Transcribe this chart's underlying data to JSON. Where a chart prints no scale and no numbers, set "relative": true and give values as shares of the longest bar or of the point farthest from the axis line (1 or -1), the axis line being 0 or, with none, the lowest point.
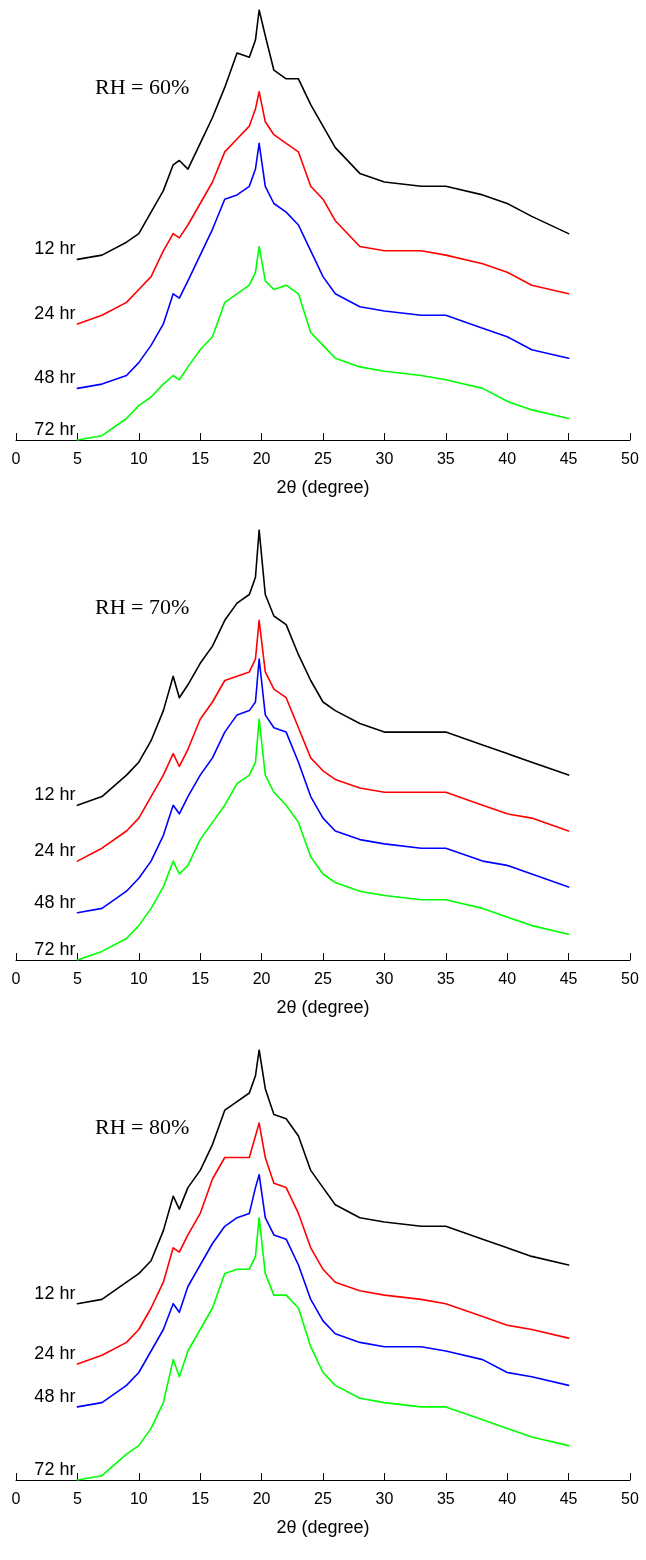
{
  "chart_data": [
    {
      "type": "line",
      "relative": true,
      "xlabel": "2θ (degree)",
      "annotations": [
        "RH = 60%"
      ],
      "xlim": [
        0,
        50
      ],
      "xticks": [
        0,
        5,
        10,
        15,
        20,
        25,
        30,
        35,
        40,
        45,
        50
      ],
      "marker": "none",
      "line_style": "solid",
      "x": [
        5,
        7,
        9,
        10,
        11,
        12,
        12.8,
        13.3,
        14,
        15,
        16,
        17,
        18,
        19,
        19.5,
        19.8,
        20.3,
        21,
        22,
        23,
        24,
        25,
        26,
        28,
        30,
        33,
        35,
        38,
        40,
        42,
        45
      ],
      "series": [
        {
          "name": "12 hr",
          "color": "#000000",
          "values": [
            0.42,
            0.43,
            0.46,
            0.48,
            0.53,
            0.58,
            0.64,
            0.65,
            0.63,
            0.69,
            0.75,
            0.82,
            0.9,
            0.89,
            0.93,
            1.0,
            0.94,
            0.86,
            0.84,
            0.84,
            0.78,
            0.73,
            0.68,
            0.62,
            0.6,
            0.59,
            0.59,
            0.57,
            0.55,
            0.52,
            0.48
          ]
        },
        {
          "name": "24 hr",
          "color": "#ff0000",
          "values": [
            0.27,
            0.29,
            0.32,
            0.35,
            0.38,
            0.44,
            0.48,
            0.47,
            0.5,
            0.55,
            0.6,
            0.67,
            0.7,
            0.73,
            0.77,
            0.81,
            0.74,
            0.71,
            0.69,
            0.67,
            0.59,
            0.56,
            0.51,
            0.45,
            0.44,
            0.44,
            0.43,
            0.41,
            0.39,
            0.36,
            0.34
          ]
        },
        {
          "name": "48 hr",
          "color": "#0000ff",
          "values": [
            0.12,
            0.13,
            0.15,
            0.18,
            0.22,
            0.27,
            0.34,
            0.33,
            0.37,
            0.43,
            0.49,
            0.56,
            0.57,
            0.59,
            0.63,
            0.69,
            0.59,
            0.55,
            0.53,
            0.5,
            0.44,
            0.38,
            0.34,
            0.31,
            0.3,
            0.29,
            0.29,
            0.26,
            0.24,
            0.21,
            0.19
          ]
        },
        {
          "name": "72 hr",
          "color": "#00ff00",
          "values": [
            0,
            0.01,
            0.05,
            0.08,
            0.1,
            0.13,
            0.15,
            0.14,
            0.17,
            0.21,
            0.24,
            0.32,
            0.34,
            0.36,
            0.39,
            0.45,
            0.37,
            0.35,
            0.36,
            0.34,
            0.25,
            0.22,
            0.19,
            0.17,
            0.16,
            0.15,
            0.14,
            0.12,
            0.09,
            0.07,
            0.05
          ]
        }
      ]
    },
    {
      "type": "line",
      "relative": true,
      "xlabel": "2θ (degree)",
      "annotations": [
        "RH = 70%"
      ],
      "xlim": [
        0,
        50
      ],
      "xticks": [
        0,
        5,
        10,
        15,
        20,
        25,
        30,
        35,
        40,
        45,
        50
      ],
      "marker": "none",
      "line_style": "solid",
      "x": [
        5,
        7,
        9,
        10,
        11,
        12,
        12.8,
        13.3,
        14,
        15,
        16,
        17,
        18,
        19,
        19.5,
        19.8,
        20.3,
        21,
        22,
        23,
        24,
        25,
        26,
        28,
        30,
        33,
        35,
        38,
        40,
        42,
        45
      ],
      "series": [
        {
          "name": "12 hr",
          "color": "#000000",
          "values": [
            0.36,
            0.38,
            0.43,
            0.46,
            0.51,
            0.58,
            0.66,
            0.61,
            0.64,
            0.69,
            0.73,
            0.79,
            0.83,
            0.85,
            0.89,
            1.0,
            0.85,
            0.8,
            0.78,
            0.71,
            0.65,
            0.6,
            0.58,
            0.55,
            0.53,
            0.53,
            0.53,
            0.5,
            0.48,
            0.46,
            0.43
          ]
        },
        {
          "name": "24 hr",
          "color": "#ff0000",
          "values": [
            0.23,
            0.26,
            0.3,
            0.33,
            0.38,
            0.43,
            0.48,
            0.45,
            0.49,
            0.56,
            0.6,
            0.65,
            0.66,
            0.67,
            0.7,
            0.79,
            0.67,
            0.63,
            0.61,
            0.54,
            0.47,
            0.44,
            0.42,
            0.4,
            0.39,
            0.39,
            0.39,
            0.36,
            0.34,
            0.33,
            0.3
          ]
        },
        {
          "name": "48 hr",
          "color": "#0000ff",
          "values": [
            0.11,
            0.12,
            0.16,
            0.19,
            0.23,
            0.29,
            0.36,
            0.34,
            0.38,
            0.43,
            0.47,
            0.53,
            0.57,
            0.58,
            0.6,
            0.7,
            0.57,
            0.54,
            0.53,
            0.46,
            0.38,
            0.33,
            0.3,
            0.28,
            0.27,
            0.26,
            0.26,
            0.23,
            0.22,
            0.2,
            0.17
          ]
        },
        {
          "name": "72 hr",
          "color": "#00ff00",
          "values": [
            0,
            0.02,
            0.05,
            0.08,
            0.12,
            0.17,
            0.23,
            0.2,
            0.22,
            0.28,
            0.32,
            0.36,
            0.41,
            0.43,
            0.46,
            0.56,
            0.43,
            0.39,
            0.36,
            0.32,
            0.24,
            0.2,
            0.18,
            0.16,
            0.15,
            0.14,
            0.14,
            0.12,
            0.1,
            0.08,
            0.06
          ]
        }
      ]
    },
    {
      "type": "line",
      "relative": true,
      "xlabel": "2θ (degree)",
      "annotations": [
        "RH = 80%"
      ],
      "xlim": [
        0,
        50
      ],
      "xticks": [
        0,
        5,
        10,
        15,
        20,
        25,
        30,
        35,
        40,
        45,
        50
      ],
      "marker": "none",
      "line_style": "solid",
      "x": [
        5,
        7,
        9,
        10,
        11,
        12,
        12.8,
        13.3,
        14,
        15,
        16,
        17,
        18,
        19,
        19.5,
        19.8,
        20.3,
        21,
        22,
        23,
        24,
        25,
        26,
        28,
        30,
        33,
        35,
        38,
        40,
        42,
        45
      ],
      "series": [
        {
          "name": "12 hr",
          "color": "#000000",
          "values": [
            0.41,
            0.42,
            0.46,
            0.48,
            0.51,
            0.58,
            0.66,
            0.63,
            0.68,
            0.72,
            0.78,
            0.86,
            0.88,
            0.9,
            0.94,
            1.0,
            0.91,
            0.85,
            0.84,
            0.8,
            0.72,
            0.68,
            0.64,
            0.61,
            0.6,
            0.59,
            0.59,
            0.56,
            0.54,
            0.52,
            0.5
          ]
        },
        {
          "name": "24 hr",
          "color": "#ff0000",
          "values": [
            0.27,
            0.29,
            0.32,
            0.35,
            0.4,
            0.46,
            0.54,
            0.53,
            0.57,
            0.62,
            0.7,
            0.75,
            0.75,
            0.75,
            0.8,
            0.83,
            0.75,
            0.69,
            0.68,
            0.62,
            0.54,
            0.49,
            0.46,
            0.44,
            0.43,
            0.42,
            0.41,
            0.38,
            0.36,
            0.35,
            0.33
          ]
        },
        {
          "name": "48 hr",
          "color": "#0000ff",
          "values": [
            0.17,
            0.18,
            0.22,
            0.25,
            0.3,
            0.35,
            0.41,
            0.39,
            0.45,
            0.5,
            0.55,
            0.59,
            0.61,
            0.62,
            0.68,
            0.71,
            0.61,
            0.57,
            0.56,
            0.5,
            0.42,
            0.37,
            0.34,
            0.32,
            0.31,
            0.31,
            0.3,
            0.28,
            0.25,
            0.24,
            0.22
          ]
        },
        {
          "name": "72 hr",
          "color": "#00ff00",
          "values": [
            0,
            0.01,
            0.06,
            0.08,
            0.12,
            0.18,
            0.28,
            0.24,
            0.3,
            0.35,
            0.4,
            0.48,
            0.49,
            0.49,
            0.52,
            0.61,
            0.48,
            0.43,
            0.43,
            0.4,
            0.31,
            0.25,
            0.22,
            0.19,
            0.18,
            0.17,
            0.17,
            0.14,
            0.12,
            0.1,
            0.08
          ]
        }
      ]
    }
  ]
}
